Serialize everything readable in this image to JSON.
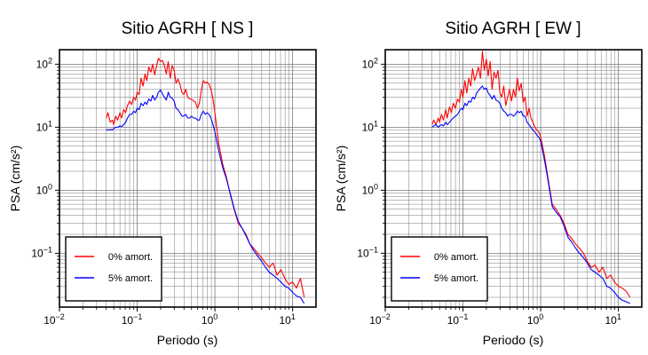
{
  "figure": {
    "background": "#ffffff"
  },
  "chart_data": [
    {
      "type": "line",
      "title": "Sitio AGRH [ NS ]",
      "xlabel": "Periodo (s)",
      "ylabel": "PSA (cm/s²)",
      "xscale": "log",
      "yscale": "log",
      "xlim": [
        0.01,
        20
      ],
      "ylim": [
        0.014,
        170
      ],
      "grid": true,
      "legend_position": "bottom-left",
      "x_ticks": [
        {
          "value": 0.01,
          "label_base": "10",
          "label_exp": "−2"
        },
        {
          "value": 0.1,
          "label_base": "10",
          "label_exp": "−1"
        },
        {
          "value": 1,
          "label_base": "10",
          "label_exp": "0"
        },
        {
          "value": 10,
          "label_base": "10",
          "label_exp": "1"
        }
      ],
      "y_ticks": [
        {
          "value": 0.1,
          "label_base": "10",
          "label_exp": "−1"
        },
        {
          "value": 1,
          "label_base": "10",
          "label_exp": "0"
        },
        {
          "value": 10,
          "label_base": "10",
          "label_exp": "1"
        },
        {
          "value": 100,
          "label_base": "10",
          "label_exp": "2"
        }
      ],
      "series": [
        {
          "name": "0% amort.",
          "color": "#ff0000",
          "x": [
            0.04,
            0.042,
            0.045,
            0.048,
            0.05,
            0.053,
            0.056,
            0.06,
            0.063,
            0.067,
            0.071,
            0.075,
            0.08,
            0.085,
            0.09,
            0.095,
            0.1,
            0.106,
            0.112,
            0.119,
            0.126,
            0.133,
            0.141,
            0.15,
            0.158,
            0.168,
            0.178,
            0.188,
            0.2,
            0.211,
            0.224,
            0.237,
            0.251,
            0.266,
            0.282,
            0.299,
            0.316,
            0.335,
            0.355,
            0.376,
            0.398,
            0.422,
            0.447,
            0.473,
            0.501,
            0.531,
            0.562,
            0.596,
            0.631,
            0.668,
            0.708,
            0.75,
            0.794,
            0.841,
            0.891,
            0.944,
            1.0,
            1.12,
            1.26,
            1.41,
            1.58,
            1.78,
            2.0,
            2.24,
            2.51,
            2.82,
            3.16,
            3.55,
            3.98,
            4.47,
            5.01,
            5.62,
            6.31,
            7.08,
            7.94,
            8.91,
            10.0,
            11.2,
            12.6,
            14.1
          ],
          "y": [
            14,
            17,
            12,
            13,
            11,
            15,
            13,
            17,
            14,
            19,
            17,
            22,
            26,
            23,
            30,
            27,
            36,
            33,
            60,
            45,
            70,
            55,
            90,
            75,
            100,
            68,
            95,
            125,
            110,
            115,
            95,
            70,
            110,
            60,
            95,
            80,
            50,
            58,
            48,
            36,
            33,
            40,
            30,
            28,
            28,
            26,
            25,
            20,
            24,
            38,
            55,
            50,
            52,
            48,
            40,
            28,
            17,
            5.5,
            2.6,
            1.6,
            0.85,
            0.48,
            0.3,
            0.25,
            0.2,
            0.14,
            0.12,
            0.1,
            0.085,
            0.07,
            0.06,
            0.07,
            0.045,
            0.055,
            0.04,
            0.032,
            0.035,
            0.028,
            0.04,
            0.02
          ]
        },
        {
          "name": "5% amort.",
          "color": "#0000ff",
          "x": [
            0.04,
            0.042,
            0.045,
            0.048,
            0.05,
            0.053,
            0.056,
            0.06,
            0.063,
            0.067,
            0.071,
            0.075,
            0.08,
            0.085,
            0.09,
            0.095,
            0.1,
            0.106,
            0.112,
            0.119,
            0.126,
            0.133,
            0.141,
            0.15,
            0.158,
            0.168,
            0.178,
            0.188,
            0.2,
            0.211,
            0.224,
            0.237,
            0.251,
            0.266,
            0.282,
            0.299,
            0.316,
            0.335,
            0.355,
            0.376,
            0.398,
            0.422,
            0.447,
            0.473,
            0.501,
            0.531,
            0.562,
            0.596,
            0.631,
            0.668,
            0.708,
            0.75,
            0.794,
            0.841,
            0.891,
            0.944,
            1.0,
            1.12,
            1.26,
            1.41,
            1.58,
            1.78,
            2.0,
            2.24,
            2.51,
            2.82,
            3.16,
            3.55,
            3.98,
            4.47,
            5.01,
            5.62,
            6.31,
            7.08,
            7.94,
            8.91,
            10.0,
            11.2,
            12.6,
            14.1
          ],
          "y": [
            9.3,
            9.0,
            9.2,
            9.1,
            9.5,
            10.0,
            10.0,
            10.5,
            10.2,
            11.0,
            12.0,
            14.0,
            16.0,
            16.0,
            18.0,
            17.0,
            20.0,
            19.0,
            24.0,
            22.0,
            25.0,
            23.0,
            28.0,
            26.0,
            32.0,
            27.0,
            30.0,
            36.0,
            39.0,
            34.0,
            30.0,
            27.0,
            36.0,
            30.0,
            29.0,
            26.0,
            20.0,
            19.0,
            17.0,
            15.0,
            15.0,
            16.0,
            14.0,
            14.0,
            15.0,
            14.0,
            14.0,
            13.0,
            13.0,
            16.0,
            18.0,
            16.0,
            17.0,
            16.0,
            14.0,
            11.0,
            8.5,
            4.2,
            2.3,
            1.5,
            0.88,
            0.5,
            0.32,
            0.25,
            0.19,
            0.14,
            0.11,
            0.09,
            0.075,
            0.06,
            0.05,
            0.045,
            0.04,
            0.035,
            0.03,
            0.028,
            0.024,
            0.021,
            0.02,
            0.016
          ]
        }
      ]
    },
    {
      "type": "line",
      "title": "Sitio AGRH [ EW ]",
      "xlabel": "Periodo (s)",
      "ylabel": "PSA (cm/s²)",
      "xscale": "log",
      "yscale": "log",
      "xlim": [
        0.01,
        20
      ],
      "ylim": [
        0.014,
        170
      ],
      "grid": true,
      "legend_position": "bottom-left",
      "x_ticks": [
        {
          "value": 0.01,
          "label_base": "10",
          "label_exp": "−2"
        },
        {
          "value": 0.1,
          "label_base": "10",
          "label_exp": "−1"
        },
        {
          "value": 1,
          "label_base": "10",
          "label_exp": "0"
        },
        {
          "value": 10,
          "label_base": "10",
          "label_exp": "1"
        }
      ],
      "y_ticks": [
        {
          "value": 0.1,
          "label_base": "10",
          "label_exp": "−1"
        },
        {
          "value": 1,
          "label_base": "10",
          "label_exp": "0"
        },
        {
          "value": 10,
          "label_base": "10",
          "label_exp": "1"
        },
        {
          "value": 100,
          "label_base": "10",
          "label_exp": "2"
        }
      ],
      "series": [
        {
          "name": "0% amort.",
          "color": "#ff0000",
          "x": [
            0.04,
            0.042,
            0.045,
            0.048,
            0.05,
            0.053,
            0.056,
            0.06,
            0.063,
            0.067,
            0.071,
            0.075,
            0.08,
            0.085,
            0.09,
            0.095,
            0.1,
            0.106,
            0.112,
            0.119,
            0.126,
            0.133,
            0.141,
            0.15,
            0.158,
            0.168,
            0.178,
            0.188,
            0.2,
            0.211,
            0.224,
            0.237,
            0.251,
            0.266,
            0.282,
            0.299,
            0.316,
            0.335,
            0.355,
            0.376,
            0.398,
            0.422,
            0.447,
            0.473,
            0.501,
            0.531,
            0.562,
            0.596,
            0.631,
            0.668,
            0.708,
            0.75,
            0.794,
            0.841,
            0.891,
            0.944,
            1.0,
            1.12,
            1.26,
            1.41,
            1.58,
            1.78,
            2.0,
            2.24,
            2.51,
            2.82,
            3.16,
            3.55,
            3.98,
            4.47,
            5.01,
            5.62,
            6.31,
            7.08,
            7.94,
            8.91,
            10.0,
            11.2,
            12.6,
            14.1
          ],
          "y": [
            11,
            13,
            11,
            14,
            12,
            16,
            13,
            19,
            14,
            21,
            17,
            24,
            20,
            28,
            25,
            40,
            30,
            55,
            35,
            60,
            45,
            85,
            55,
            70,
            90,
            60,
            160,
            80,
            120,
            65,
            110,
            40,
            75,
            60,
            80,
            35,
            30,
            45,
            22,
            30,
            40,
            26,
            40,
            30,
            60,
            38,
            50,
            25,
            30,
            15,
            20,
            14,
            12,
            10,
            9,
            8.5,
            7,
            3.5,
            1.4,
            0.6,
            0.5,
            0.4,
            0.3,
            0.2,
            0.17,
            0.14,
            0.12,
            0.1,
            0.075,
            0.06,
            0.065,
            0.05,
            0.06,
            0.04,
            0.045,
            0.035,
            0.03,
            0.028,
            0.025,
            0.02
          ]
        },
        {
          "name": "5% amort.",
          "color": "#0000ff",
          "x": [
            0.04,
            0.042,
            0.045,
            0.048,
            0.05,
            0.053,
            0.056,
            0.06,
            0.063,
            0.067,
            0.071,
            0.075,
            0.08,
            0.085,
            0.09,
            0.095,
            0.1,
            0.106,
            0.112,
            0.119,
            0.126,
            0.133,
            0.141,
            0.15,
            0.158,
            0.168,
            0.178,
            0.188,
            0.2,
            0.211,
            0.224,
            0.237,
            0.251,
            0.266,
            0.282,
            0.299,
            0.316,
            0.335,
            0.355,
            0.376,
            0.398,
            0.422,
            0.447,
            0.473,
            0.501,
            0.531,
            0.562,
            0.596,
            0.631,
            0.668,
            0.708,
            0.75,
            0.794,
            0.841,
            0.891,
            0.944,
            1.0,
            1.12,
            1.26,
            1.41,
            1.58,
            1.78,
            2.0,
            2.24,
            2.51,
            2.82,
            3.16,
            3.55,
            3.98,
            4.47,
            5.01,
            5.62,
            6.31,
            7.08,
            7.94,
            8.91,
            10.0,
            11.2,
            12.6,
            14.1
          ],
          "y": [
            10,
            10.5,
            11,
            10,
            10.5,
            11,
            10.5,
            12,
            11,
            12,
            13,
            14,
            15,
            16,
            18,
            20,
            19,
            24,
            22,
            26,
            25,
            30,
            28,
            35,
            38,
            42,
            45,
            40,
            42,
            35,
            32,
            28,
            32,
            27,
            26,
            24,
            20,
            18,
            17,
            15,
            16,
            16,
            15,
            16,
            18,
            17,
            18,
            15,
            15,
            12,
            11,
            10,
            9,
            8.5,
            7.5,
            7,
            6,
            3,
            1.3,
            0.55,
            0.45,
            0.38,
            0.27,
            0.18,
            0.15,
            0.12,
            0.1,
            0.085,
            0.07,
            0.055,
            0.05,
            0.045,
            0.04,
            0.03,
            0.028,
            0.024,
            0.02,
            0.018,
            0.017,
            0.016
          ]
        }
      ]
    }
  ]
}
